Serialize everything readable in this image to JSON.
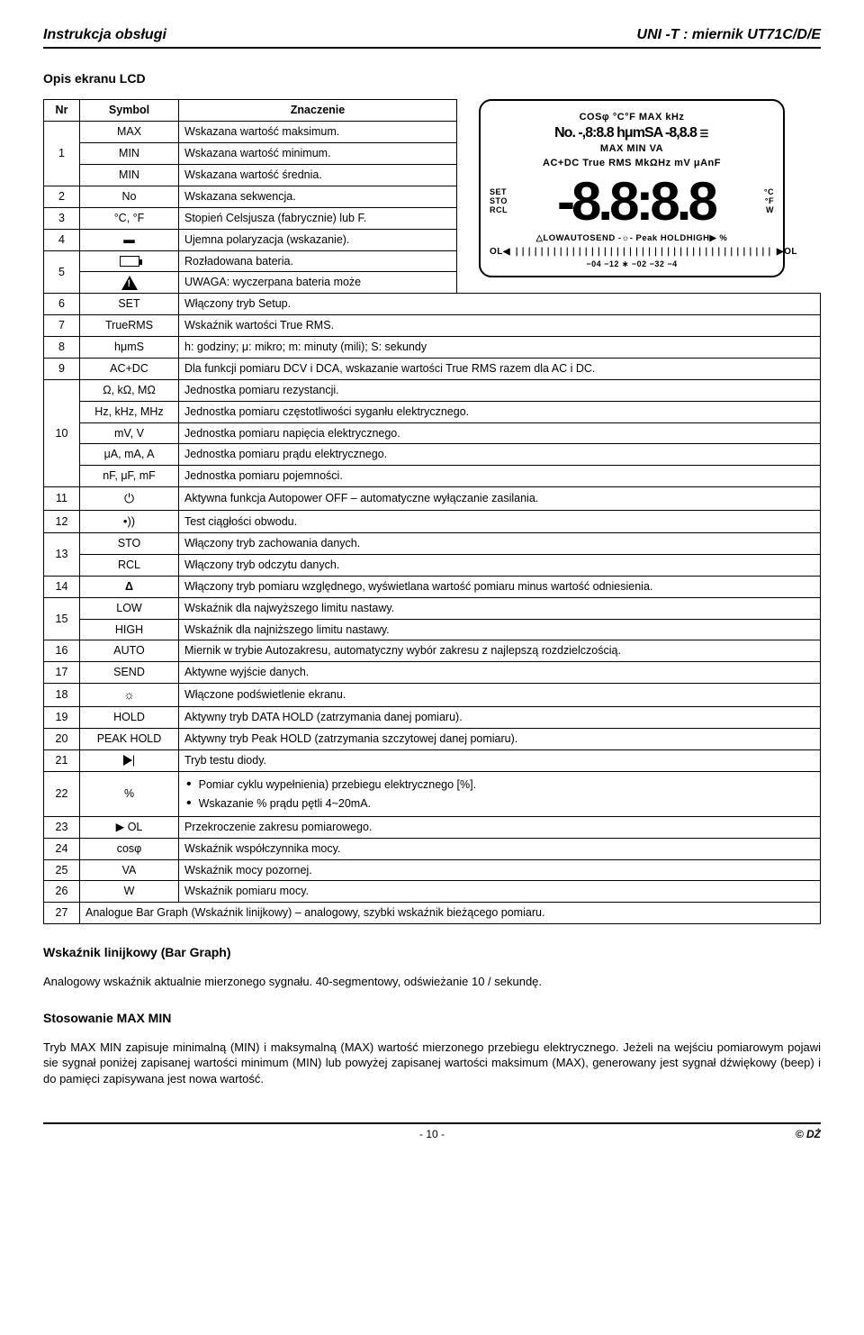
{
  "header": {
    "left": "Instrukcja obsługi",
    "right": "UNI -T : miernik  UT71C/D/E"
  },
  "section1": "Opis ekranu LCD",
  "table_small": {
    "headers": [
      "Nr",
      "Symbol",
      "Znaczenie"
    ],
    "rows": [
      {
        "nr": "1",
        "span": 3,
        "cells": [
          [
            "MAX",
            "Wskazana wartość maksimum."
          ],
          [
            "MIN",
            "Wskazana wartość minimum."
          ],
          [
            "MIN",
            "Wskazana wartość średnia."
          ]
        ]
      },
      {
        "nr": "2",
        "cells": [
          [
            "No",
            "Wskazana sekwencja."
          ]
        ]
      },
      {
        "nr": "3",
        "cells": [
          [
            "°C, °F",
            "Stopień Celsjusza (fabrycznie) lub F."
          ]
        ]
      },
      {
        "nr": "4",
        "cells": [
          [
            "▬",
            "Ujemna polaryzacja (wskazanie)."
          ]
        ]
      },
      {
        "nr": "5",
        "span": 2,
        "cells": [
          [
            "__BATTERY__",
            "Rozładowana bateria."
          ],
          [
            "__WARN__",
            "UWAGA: wyczerpana bateria może"
          ]
        ]
      }
    ]
  },
  "table_main": {
    "rows": [
      [
        "6",
        "SET",
        "Włączony tryb Setup."
      ],
      [
        "7",
        "TrueRMS",
        "Wskaźnik wartości True RMS."
      ],
      [
        "8",
        "hμmS",
        "h: godziny;  μ: mikro;  m: minuty (mili); S: sekundy"
      ],
      [
        "9",
        "AC+DC",
        "Dla funkcji pomiaru DCV i DCA, wskazanie wartości True RMS razem dla  AC i DC."
      ],
      [
        "10",
        [
          [
            "Ω, kΩ, MΩ",
            "Jednostka pomiaru rezystancji."
          ],
          [
            "Hz, kHz, MHz",
            "Jednostka pomiaru częstotliwości syganłu elektrycznego."
          ],
          [
            "mV, V",
            "Jednostka pomiaru napięcia elektrycznego."
          ],
          [
            "μA, mA, A",
            "Jednostka pomiaru prądu elektrycznego."
          ],
          [
            "nF, μF, mF",
            "Jednostka pomiaru pojemności."
          ]
        ]
      ],
      [
        "11",
        "__AUTOOFF__",
        "Aktywna funkcja Autopower OFF – automatyczne wyłączanie zasilania."
      ],
      [
        "12",
        "__BUZZ__",
        "Test ciągłości obwodu."
      ],
      [
        "13",
        [
          [
            "STO",
            "Włączony tryb zachowania danych."
          ],
          [
            "RCL",
            "Włączony tryb odczytu danych."
          ]
        ]
      ],
      [
        "14",
        "Δ",
        "Włączony tryb pomiaru względnego, wyświetlana wartość pomiaru minus wartość odniesienia."
      ],
      [
        "15",
        [
          [
            "LOW",
            "Wskaźnik dla najwyższego limitu nastawy."
          ],
          [
            "HIGH",
            "Wskaźnik dla najniższego limitu nastawy."
          ]
        ]
      ],
      [
        "16",
        "AUTO",
        "Miernik w trybie Autozakresu, automatyczny wybór zakresu z najlepszą rozdzielczością."
      ],
      [
        "17",
        "SEND",
        "Aktywne wyjście danych."
      ],
      [
        "18",
        "__LAMP__",
        "Włączone podświetlenie ekranu."
      ],
      [
        "19",
        "HOLD",
        "Aktywny tryb DATA HOLD (zatrzymania danej pomiaru)."
      ],
      [
        "20",
        "PEAK HOLD",
        "Aktywny tryb Peak HOLD (zatrzymania szczytowej danej pomiaru)."
      ],
      [
        "21",
        "__DIODE__",
        "Tryb testu diody."
      ],
      [
        "22",
        "%",
        "__PERCENT_LIST__"
      ],
      [
        "23",
        "▶ OL",
        "Przekroczenie zakresu pomiarowego."
      ],
      [
        "24",
        "cosφ",
        "Wskaźnik współczynnika mocy."
      ],
      [
        "25",
        "VA",
        "Wskaźnik mocy pozornej."
      ],
      [
        "26",
        "W",
        "Wskaźnik pomiaru mocy."
      ],
      [
        "27",
        "__SPAN2__",
        "Analogue Bar Graph (Wskaźnik linijkowy) – analogowy, szybki wskaźnik bieżącego pomiaru."
      ]
    ],
    "percent_list": [
      "Pomiar cyklu wypełnienia) przebiegu elektrycznego [%].",
      "Wskazanie % prądu pętli 4~20mA."
    ]
  },
  "section2": "Wskaźnik linijkowy (Bar Graph)",
  "para2": "Analogowy wskaźnik aktualnie mierzonego sygnału. 40-segmentowy, odświeżanie 10 / sekundę.",
  "section3": "Stosowanie MAX MIN",
  "para3": "Tryb MAX MIN zapisuje minimalną (MIN) i maksymalną (MAX) wartość mierzonego przebiegu elektrycznego. Jeżeli na wejściu pomiarowym pojawi sie sygnał poniżej zapisanej wartości minimum (MIN) lub powyżej zapisanej wartości maksimum (MAX), generowany jest sygnał dźwiękowy (beep) i do pamięci zapisywana jest nowa wartość.",
  "footer": {
    "center": "- 10 -",
    "right": "© DŻ"
  },
  "lcd": {
    "l1": "COSφ          °C°F MAX         kHz",
    "l2a": "No.  -,8:8.8",
    "l2b": "hμmSA  -8,8.8",
    "l2c": "☰",
    "l3": "MAX                MIN                 VA",
    "l4": "AC+DC  True RMS   MkΩHz   mV  μAnF",
    "big": "-8.8:8.8",
    "side_left": "SET\nSTO\nRCL",
    "side_right": "°C\n°F\nW",
    "l5": "△LOWAUTOSEND  -☼- Peak HOLDHIGH▶ %",
    "bar_left": "OL◀",
    "bar_right": "▶OL",
    "ticks": "−04      −12      ∗      −02      −32      −4"
  }
}
